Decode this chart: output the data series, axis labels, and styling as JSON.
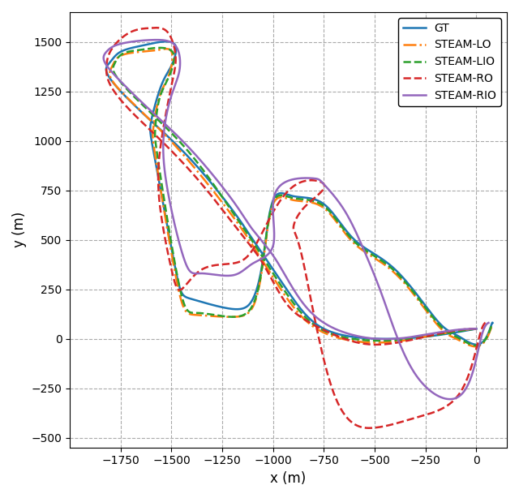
{
  "title": "",
  "xlabel": "x (m)",
  "ylabel": "y (m)",
  "xlim": [
    -2000,
    150
  ],
  "ylim": [
    -550,
    1650
  ],
  "xticks": [
    -1750,
    -1500,
    -1250,
    -1000,
    -750,
    -500,
    -250,
    0
  ],
  "yticks": [
    -500,
    -250,
    0,
    250,
    500,
    750,
    1000,
    1250,
    1500
  ],
  "grid": true,
  "grid_style": "--",
  "grid_color": "#aaaaaa",
  "background_color": "#ffffff",
  "legend_loc": "upper right",
  "lines": [
    {
      "label": "GT",
      "color": "#1f77b4",
      "linestyle": "-",
      "linewidth": 1.8,
      "dash": null
    },
    {
      "label": "STEAM-LO",
      "color": "#ff7f0e",
      "linestyle": "-.",
      "linewidth": 1.8,
      "dash": null
    },
    {
      "label": "STEAM-LIO",
      "color": "#2ca02c",
      "linestyle": "--",
      "linewidth": 1.8,
      "dash": null
    },
    {
      "label": "STEAM-RO",
      "color": "#d62728",
      "linestyle": "--",
      "linewidth": 1.8,
      "dash": null
    },
    {
      "label": "STEAM-RIO",
      "color": "#9467bd",
      "linestyle": "-",
      "linewidth": 1.8,
      "dash": null
    }
  ]
}
